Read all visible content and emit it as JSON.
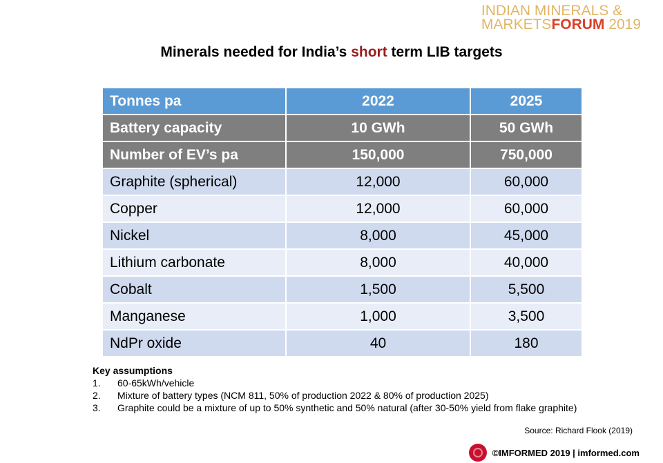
{
  "brand": {
    "line1": "INDIAN MINERALS &",
    "line2_prefix": "MARKETS",
    "line2_strong": "FORUM",
    "line2_suffix": " 2019"
  },
  "title": {
    "prefix": "Minerals needed for India’s ",
    "highlight": "short",
    "suffix": " term LIB targets"
  },
  "table": {
    "header": [
      "Tonnes pa",
      "2022",
      "2025"
    ],
    "rows": [
      {
        "label": "Battery capacity",
        "v2022": "10 GWh",
        "v2025": "50 GWh"
      },
      {
        "label": "Number of EV’s pa",
        "v2022": "150,000",
        "v2025": "750,000"
      },
      {
        "label": "Graphite (spherical)",
        "v2022": "12,000",
        "v2025": "60,000"
      },
      {
        "label": "Copper",
        "v2022": "12,000",
        "v2025": "60,000"
      },
      {
        "label": "Nickel",
        "v2022": "8,000",
        "v2025": "45,000"
      },
      {
        "label": "Lithium carbonate",
        "v2022": "8,000",
        "v2025": "40,000"
      },
      {
        "label": "Cobalt",
        "v2022": "1,500",
        "v2025": "5,500"
      },
      {
        "label": "Manganese",
        "v2022": "1,000",
        "v2025": "3,500"
      },
      {
        "label": "NdPr oxide",
        "v2022": "40",
        "v2025": "180"
      }
    ]
  },
  "assumptions": {
    "heading": "Key assumptions",
    "items": [
      {
        "num": "1.",
        "text": "60-65kWh/vehicle"
      },
      {
        "num": "2.",
        "text": "Mixture of battery types (NCM 811, 50% of production 2022 & 80% of production 2025)"
      },
      {
        "num": "3.",
        "text": "Graphite could be a mixture of up to 50% synthetic and 50% natural (after 30-50% yield from flake graphite)"
      }
    ]
  },
  "source": "Source: Richard Flook (2019)",
  "footer": "©IMFORMED 2019 | imformed.com"
}
